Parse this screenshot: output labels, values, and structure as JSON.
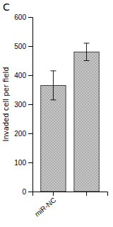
{
  "chart_data": {
    "type": "bar",
    "title": "C",
    "ylabel": "Invaded cell per field",
    "categories": [
      "miR-NC",
      null
    ],
    "values": [
      365,
      480
    ],
    "errors": [
      50,
      30
    ],
    "color": "#c8c8c8",
    "ylim": [
      0,
      600
    ],
    "yticks": [
      0,
      100,
      200,
      300,
      400,
      500,
      600
    ],
    "grid": false
  }
}
